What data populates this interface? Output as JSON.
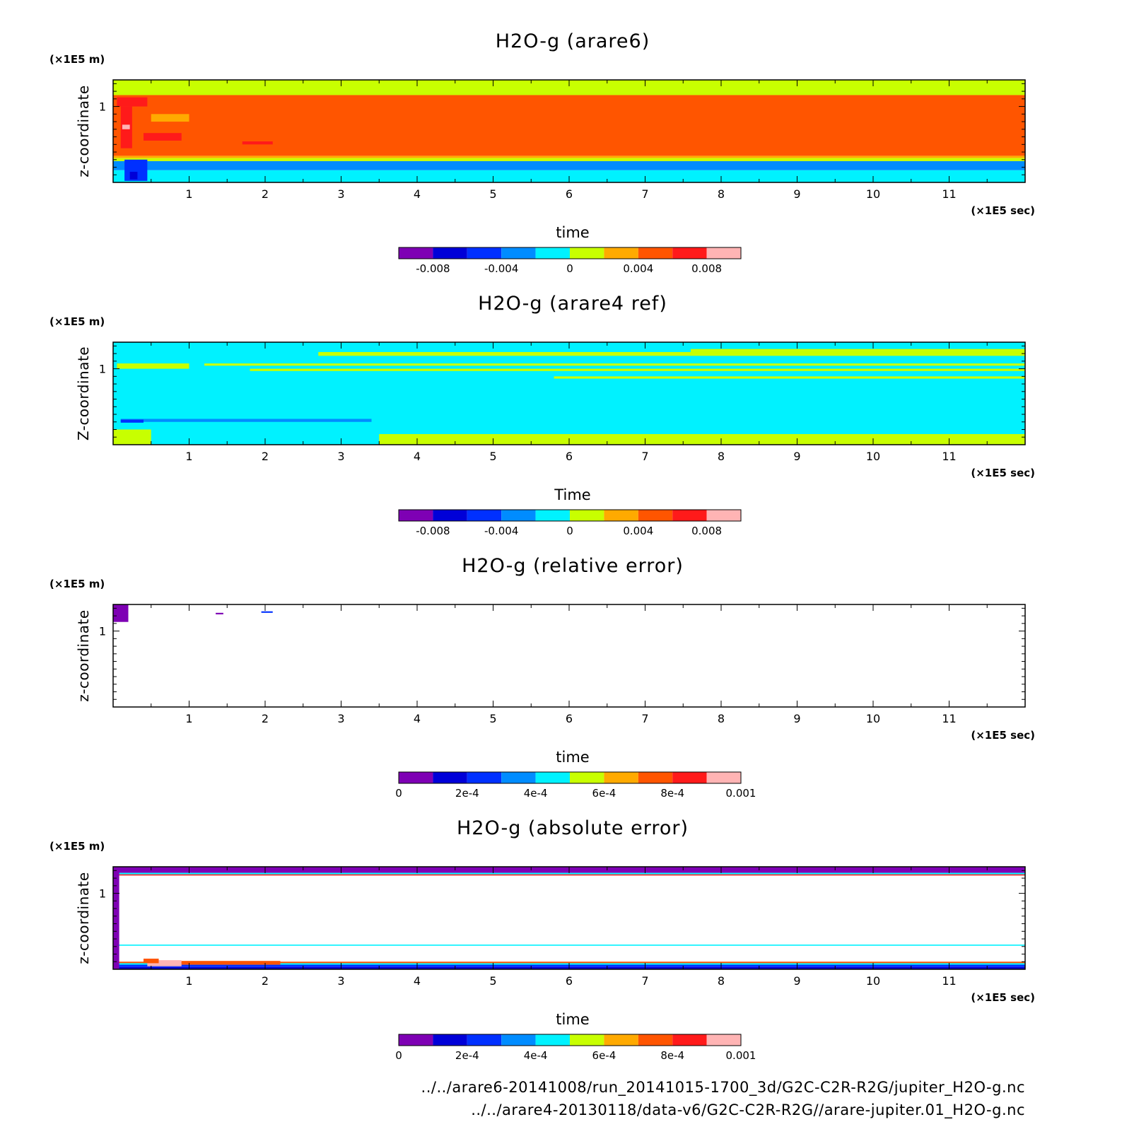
{
  "chart_data": [
    {
      "type": "heatmap",
      "title": "H2O-g (arare6)",
      "xlabel": "time",
      "ylabel": "z-coordinate",
      "x_unit": "(×1E5 sec)",
      "y_unit": "(×1E5 m)",
      "xlim": [
        0,
        12
      ],
      "ylim": [
        0,
        1.35
      ],
      "x_ticks": [
        "1",
        "2",
        "3",
        "4",
        "5",
        "6",
        "7",
        "8",
        "9",
        "10",
        "11"
      ],
      "y_ticks": [
        "1"
      ],
      "colorbar": {
        "levels": [
          -0.01,
          -0.008,
          -0.006,
          -0.004,
          -0.002,
          0,
          0.002,
          0.004,
          0.006,
          0.008,
          0.01
        ],
        "tick_labels": [
          "-0.008",
          "-0.004",
          "0",
          "0.004",
          "0.008"
        ],
        "tick_values": [
          -0.008,
          -0.004,
          0,
          0.004,
          0.008
        ],
        "colors": [
          "#7e00b4",
          "#0000d8",
          "#0030ff",
          "#008cff",
          "#00f2ff",
          "#c8ff00",
          "#ffaa00",
          "#ff5500",
          "#ff1a1a",
          "#ffb4b4"
        ]
      },
      "bands": [
        {
          "y0": 1.15,
          "y1": 1.35,
          "color": "#c8ff00"
        },
        {
          "y0": 0.35,
          "y1": 1.15,
          "color": "#ff5500"
        },
        {
          "y0": 0.32,
          "y1": 0.35,
          "color": "#ffaa00"
        },
        {
          "y0": 0.28,
          "y1": 0.32,
          "color": "#c8ff00"
        },
        {
          "y0": 0.16,
          "y1": 0.28,
          "color": "#008cff"
        },
        {
          "y0": 0.0,
          "y1": 0.16,
          "color": "#00f2ff"
        }
      ],
      "regions": [
        {
          "x0": 0.05,
          "x1": 0.45,
          "y0": 1.0,
          "y1": 1.12,
          "color": "#ff1a1a"
        },
        {
          "x0": 0.1,
          "x1": 0.25,
          "y0": 0.45,
          "y1": 1.0,
          "color": "#ff1a1a"
        },
        {
          "x0": 0.4,
          "x1": 0.9,
          "y0": 0.55,
          "y1": 0.65,
          "color": "#ff1a1a"
        },
        {
          "x0": 1.7,
          "x1": 2.1,
          "y0": 0.5,
          "y1": 0.54,
          "color": "#ff1a1a"
        },
        {
          "x0": 0.5,
          "x1": 1.0,
          "y0": 0.8,
          "y1": 0.9,
          "color": "#ffaa00"
        },
        {
          "x0": 0.12,
          "x1": 0.22,
          "y0": 0.7,
          "y1": 0.76,
          "color": "#ffb4b4"
        },
        {
          "x0": 0.15,
          "x1": 0.45,
          "y0": 0.02,
          "y1": 0.3,
          "color": "#0030ff"
        },
        {
          "x0": 0.22,
          "x1": 0.32,
          "y0": 0.04,
          "y1": 0.14,
          "color": "#0000d8"
        }
      ]
    },
    {
      "type": "heatmap",
      "title": "H2O-g (arare4 ref)",
      "xlabel": "Time",
      "ylabel": "Z-coordinate",
      "x_unit": "(×1E5 sec)",
      "y_unit": "(×1E5 m)",
      "xlim": [
        0,
        12
      ],
      "ylim": [
        0,
        1.35
      ],
      "x_ticks": [
        "1",
        "2",
        "3",
        "4",
        "5",
        "6",
        "7",
        "8",
        "9",
        "10",
        "11"
      ],
      "y_ticks": [
        "1"
      ],
      "colorbar": {
        "levels": [
          -0.01,
          -0.008,
          -0.006,
          -0.004,
          -0.002,
          0,
          0.002,
          0.004,
          0.006,
          0.008,
          0.01
        ],
        "tick_labels": [
          "-0.008",
          "-0.004",
          "0",
          "0.004",
          "0.008"
        ],
        "tick_values": [
          -0.008,
          -0.004,
          0,
          0.004,
          0.008
        ],
        "colors": [
          "#7e00b4",
          "#0000d8",
          "#0030ff",
          "#008cff",
          "#00f2ff",
          "#c8ff00",
          "#ffaa00",
          "#ff5500",
          "#ff1a1a",
          "#ffb4b4"
        ]
      },
      "bands": [
        {
          "y0": 0.0,
          "y1": 1.35,
          "color": "#00f2ff"
        }
      ],
      "regions": [
        {
          "x0": 1.2,
          "x1": 12.0,
          "y0": 1.04,
          "y1": 1.07,
          "color": "#c8ff00"
        },
        {
          "x0": 2.7,
          "x1": 12.0,
          "y0": 1.17,
          "y1": 1.22,
          "color": "#c8ff00"
        },
        {
          "x0": 7.6,
          "x1": 12.0,
          "y0": 1.22,
          "y1": 1.26,
          "color": "#c8ff00"
        },
        {
          "x0": 1.8,
          "x1": 12.0,
          "y0": 0.97,
          "y1": 1.0,
          "color": "#c8ff00"
        },
        {
          "x0": 5.8,
          "x1": 12.0,
          "y0": 0.87,
          "y1": 0.9,
          "color": "#c8ff00"
        },
        {
          "x0": 3.5,
          "x1": 12.0,
          "y0": 0.0,
          "y1": 0.14,
          "color": "#c8ff00"
        },
        {
          "x0": 0.0,
          "x1": 0.5,
          "y0": 0.0,
          "y1": 0.2,
          "color": "#c8ff00"
        },
        {
          "x0": 0.05,
          "x1": 1.0,
          "y0": 1.0,
          "y1": 1.07,
          "color": "#c8ff00"
        },
        {
          "x0": 0.1,
          "x1": 3.4,
          "y0": 0.3,
          "y1": 0.34,
          "color": "#008cff"
        },
        {
          "x0": 0.1,
          "x1": 0.4,
          "y0": 0.29,
          "y1": 0.33,
          "color": "#0030ff"
        }
      ]
    },
    {
      "type": "heatmap",
      "title": "H2O-g (relative error)",
      "xlabel": "time",
      "ylabel": "z-coordinate",
      "x_unit": "(×1E5 sec)",
      "y_unit": "(×1E5 m)",
      "xlim": [
        0,
        12
      ],
      "ylim": [
        0,
        1.35
      ],
      "x_ticks": [
        "1",
        "2",
        "3",
        "4",
        "5",
        "6",
        "7",
        "8",
        "9",
        "10",
        "11"
      ],
      "y_ticks": [
        "1"
      ],
      "colorbar": {
        "levels": [
          0,
          0.0001,
          0.0002,
          0.0003,
          0.0004,
          0.0005,
          0.0006,
          0.0007,
          0.0008,
          0.0009,
          0.001
        ],
        "tick_labels": [
          "0",
          "2e-4",
          "4e-4",
          "6e-4",
          "8e-4",
          "0.001"
        ],
        "tick_values": [
          0,
          0.0002,
          0.0004,
          0.0006,
          0.0008,
          0.001
        ],
        "colors": [
          "#7e00b4",
          "#0000d8",
          "#0030ff",
          "#008cff",
          "#00f2ff",
          "#c8ff00",
          "#ffaa00",
          "#ff5500",
          "#ff1a1a",
          "#ffb4b4"
        ]
      },
      "bands": [],
      "regions": [
        {
          "x0": 0.0,
          "x1": 0.2,
          "y0": 1.12,
          "y1": 1.35,
          "color": "#7e00b4"
        },
        {
          "x0": 1.35,
          "x1": 1.45,
          "y0": 1.22,
          "y1": 1.24,
          "color": "#7e00b4"
        },
        {
          "x0": 1.95,
          "x1": 2.1,
          "y0": 1.24,
          "y1": 1.26,
          "color": "#0030ff"
        }
      ]
    },
    {
      "type": "heatmap",
      "title": "H2O-g (absolute error)",
      "xlabel": "time",
      "ylabel": "z-coordinate",
      "x_unit": "(×1E5 sec)",
      "y_unit": "(×1E5 m)",
      "xlim": [
        0,
        12
      ],
      "ylim": [
        0,
        1.35
      ],
      "x_ticks": [
        "1",
        "2",
        "3",
        "4",
        "5",
        "6",
        "7",
        "8",
        "9",
        "10",
        "11"
      ],
      "y_ticks": [
        "1"
      ],
      "colorbar": {
        "levels": [
          0,
          0.0001,
          0.0002,
          0.0003,
          0.0004,
          0.0005,
          0.0006,
          0.0007,
          0.0008,
          0.0009,
          0.001
        ],
        "tick_labels": [
          "0",
          "2e-4",
          "4e-4",
          "6e-4",
          "8e-4",
          "0.001"
        ],
        "tick_values": [
          0,
          0.0002,
          0.0004,
          0.0006,
          0.0008,
          0.001
        ],
        "colors": [
          "#7e00b4",
          "#0000d8",
          "#0030ff",
          "#008cff",
          "#00f2ff",
          "#c8ff00",
          "#ffaa00",
          "#ff5500",
          "#ff1a1a",
          "#ffb4b4"
        ]
      },
      "bands": [
        {
          "y0": 1.27,
          "y1": 1.35,
          "color": "#7e00b4"
        },
        {
          "y0": 1.25,
          "y1": 1.27,
          "color": "#00f2ff"
        },
        {
          "y0": 1.235,
          "y1": 1.25,
          "color": "#ff1a1a"
        },
        {
          "y0": 0.31,
          "y1": 0.325,
          "color": "#00f2ff"
        },
        {
          "y0": 0.08,
          "y1": 0.1,
          "color": "#ff5500"
        },
        {
          "y0": 0.06,
          "y1": 0.08,
          "color": "#00f2ff"
        },
        {
          "y0": 0.03,
          "y1": 0.06,
          "color": "#0030ff"
        },
        {
          "y0": 0.0,
          "y1": 0.03,
          "color": "#0000d8"
        }
      ],
      "regions": [
        {
          "x0": 0.0,
          "x1": 0.08,
          "y0": 0.0,
          "y1": 1.35,
          "color": "#7e00b4"
        },
        {
          "x0": 0.45,
          "x1": 0.9,
          "y0": 0.04,
          "y1": 0.12,
          "color": "#ffb4b4"
        },
        {
          "x0": 0.4,
          "x1": 0.6,
          "y0": 0.08,
          "y1": 0.14,
          "color": "#ff5500"
        },
        {
          "x0": 0.9,
          "x1": 2.2,
          "y0": 0.06,
          "y1": 0.11,
          "color": "#ff5500"
        }
      ]
    }
  ],
  "footer": {
    "line1": "../../arare6-20141008/run_20141015-1700_3d/G2C-C2R-R2G/jupiter_H2O-g.nc",
    "line2": "../../arare4-20130118/data-v6/G2C-C2R-R2G//arare-jupiter.01_H2O-g.nc"
  }
}
